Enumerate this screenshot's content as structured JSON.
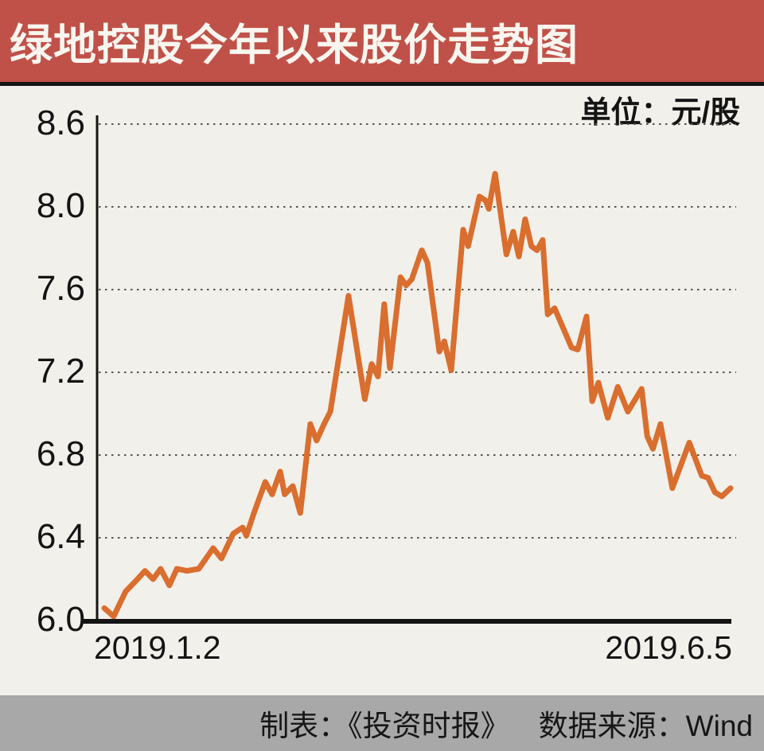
{
  "header": {
    "title": "绿地控股今年以来股价走势图"
  },
  "chart": {
    "unit_label": "单位：元/股",
    "y_axis": {
      "labels_top_to_bottom": [
        "8.6",
        "8.0",
        "7.6",
        "7.2",
        "6.8",
        "6.4",
        "6.0"
      ]
    },
    "x_axis": {
      "start_label": "2019.1.2",
      "end_label": "2019.6.5"
    }
  },
  "footer": {
    "credit": "制表：《投资时报》",
    "source": "数据来源：Wind"
  },
  "colors": {
    "header_bg": "#c05149",
    "title_text": "#f8f6ef",
    "body_bg": "#f2f0ea",
    "axis_text": "#141414",
    "line": "#d96e2e",
    "grid_dots": "#58544e",
    "footer_bg": "#a8a8a8",
    "footer_text": "#161616"
  },
  "chart_data": {
    "type": "line",
    "title": "绿地控股今年以来股价走势图",
    "unit": "元/股",
    "series_name": "股价",
    "x_range": [
      "2019.1.2",
      "2019.6.5"
    ],
    "y_ticks_displayed": [
      8.6,
      8.0,
      7.6,
      7.2,
      6.8,
      6.4,
      6.0
    ],
    "ylim": [
      6.0,
      8.4
    ],
    "grid": "horizontal-dotted",
    "legend": "none",
    "line_color": "#d96e2e",
    "points": [
      [
        0.0,
        6.06
      ],
      [
        0.015,
        6.02
      ],
      [
        0.034,
        6.14
      ],
      [
        0.05,
        6.19
      ],
      [
        0.065,
        6.24
      ],
      [
        0.078,
        6.2
      ],
      [
        0.09,
        6.25
      ],
      [
        0.104,
        6.17
      ],
      [
        0.116,
        6.25
      ],
      [
        0.132,
        6.24
      ],
      [
        0.151,
        6.25
      ],
      [
        0.174,
        6.35
      ],
      [
        0.187,
        6.3
      ],
      [
        0.206,
        6.42
      ],
      [
        0.221,
        6.45
      ],
      [
        0.227,
        6.41
      ],
      [
        0.239,
        6.52
      ],
      [
        0.257,
        6.67
      ],
      [
        0.268,
        6.61
      ],
      [
        0.281,
        6.72
      ],
      [
        0.288,
        6.61
      ],
      [
        0.301,
        6.65
      ],
      [
        0.313,
        6.52
      ],
      [
        0.329,
        6.95
      ],
      [
        0.339,
        6.87
      ],
      [
        0.351,
        6.95
      ],
      [
        0.361,
        7.01
      ],
      [
        0.39,
        7.57
      ],
      [
        0.416,
        7.07
      ],
      [
        0.427,
        7.24
      ],
      [
        0.437,
        7.18
      ],
      [
        0.447,
        7.53
      ],
      [
        0.456,
        7.22
      ],
      [
        0.473,
        7.66
      ],
      [
        0.482,
        7.62
      ],
      [
        0.491,
        7.65
      ],
      [
        0.507,
        7.79
      ],
      [
        0.516,
        7.73
      ],
      [
        0.535,
        7.3
      ],
      [
        0.543,
        7.35
      ],
      [
        0.554,
        7.21
      ],
      [
        0.573,
        7.89
      ],
      [
        0.581,
        7.81
      ],
      [
        0.599,
        8.05
      ],
      [
        0.609,
        8.03
      ],
      [
        0.614,
        7.99
      ],
      [
        0.624,
        8.16
      ],
      [
        0.642,
        7.77
      ],
      [
        0.653,
        7.88
      ],
      [
        0.662,
        7.76
      ],
      [
        0.672,
        7.94
      ],
      [
        0.682,
        7.81
      ],
      [
        0.691,
        7.79
      ],
      [
        0.7,
        7.84
      ],
      [
        0.708,
        7.48
      ],
      [
        0.719,
        7.51
      ],
      [
        0.746,
        7.32
      ],
      [
        0.756,
        7.31
      ],
      [
        0.77,
        7.47
      ],
      [
        0.779,
        7.06
      ],
      [
        0.789,
        7.15
      ],
      [
        0.804,
        6.98
      ],
      [
        0.82,
        7.13
      ],
      [
        0.836,
        7.01
      ],
      [
        0.858,
        7.12
      ],
      [
        0.867,
        6.89
      ],
      [
        0.876,
        6.83
      ],
      [
        0.888,
        6.95
      ],
      [
        0.907,
        6.64
      ],
      [
        0.934,
        6.86
      ],
      [
        0.954,
        6.7
      ],
      [
        0.964,
        6.69
      ],
      [
        0.975,
        6.62
      ],
      [
        0.986,
        6.6
      ],
      [
        1.0,
        6.64
      ]
    ]
  }
}
